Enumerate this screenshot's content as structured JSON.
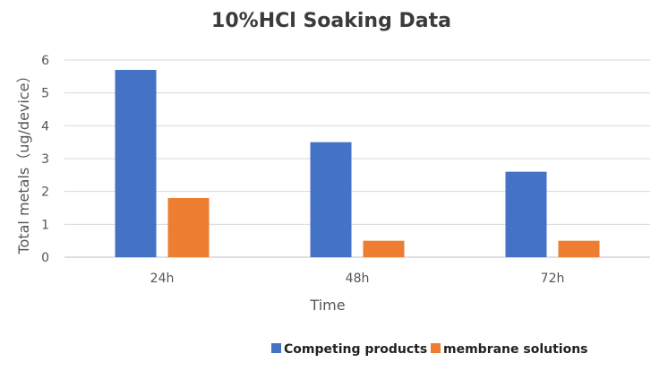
{
  "chart_data": {
    "type": "bar",
    "title": "10%HCl Soaking Data",
    "xlabel": "Time",
    "ylabel": "Total metals（ug/device）",
    "categories": [
      "24h",
      "48h",
      "72h"
    ],
    "series": [
      {
        "name": "Competing products",
        "values": [
          5.7,
          3.5,
          2.6
        ],
        "color": "#4472c4"
      },
      {
        "name": "membrane solutions",
        "values": [
          1.8,
          0.5,
          0.5
        ],
        "color": "#ed7d31"
      }
    ],
    "ylim": [
      0,
      6
    ],
    "yticks": [
      "0",
      "1",
      "2",
      "3",
      "4",
      "5",
      "6"
    ],
    "grid": true,
    "legend_position": "bottom-right"
  }
}
